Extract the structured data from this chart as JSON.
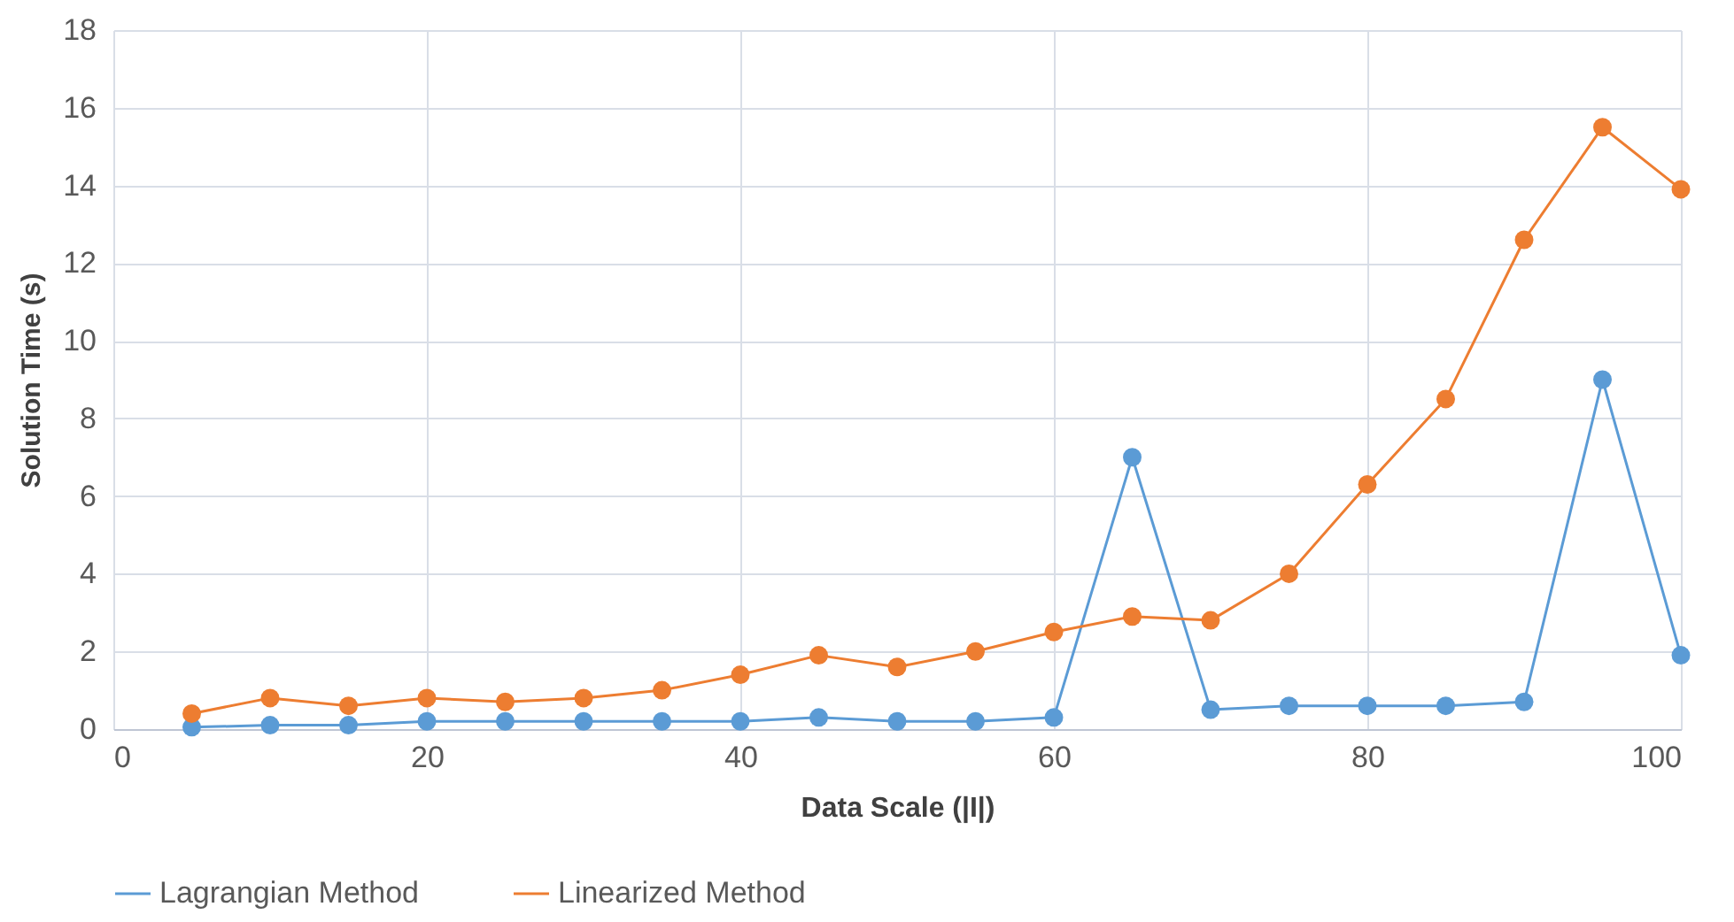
{
  "chart_data": {
    "type": "line",
    "xlabel": "Data Scale (|I|)",
    "ylabel": "Solution Time (s)",
    "x": [
      5,
      10,
      15,
      20,
      25,
      30,
      35,
      40,
      45,
      50,
      55,
      60,
      65,
      70,
      75,
      80,
      85,
      90,
      95,
      100
    ],
    "series": [
      {
        "name": "Lagrangian Method",
        "color": "#5b9bd5",
        "values": [
          0.05,
          0.1,
          0.1,
          0.2,
          0.2,
          0.2,
          0.2,
          0.2,
          0.3,
          0.2,
          0.2,
          0.3,
          7.0,
          0.5,
          0.6,
          0.6,
          0.6,
          0.7,
          9.0,
          1.9
        ]
      },
      {
        "name": "Linearized Method",
        "color": "#ed7d31",
        "values": [
          0.4,
          0.8,
          0.6,
          0.8,
          0.7,
          0.8,
          1.0,
          1.4,
          1.9,
          1.6,
          2.0,
          2.5,
          2.9,
          2.8,
          4.0,
          6.3,
          8.5,
          12.6,
          15.5,
          13.9
        ]
      }
    ],
    "xlim": [
      0,
      100
    ],
    "xticks": [
      0,
      20,
      40,
      60,
      80,
      100
    ],
    "ylim": [
      0,
      18
    ],
    "yticks": [
      0,
      2,
      4,
      6,
      8,
      10,
      12,
      14,
      16,
      18
    ],
    "grid": true,
    "legend": "bottom",
    "marker": "circle",
    "line_style": "solid"
  }
}
